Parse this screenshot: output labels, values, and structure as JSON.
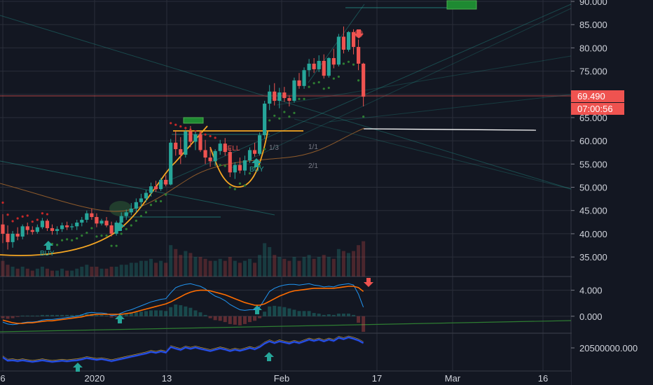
{
  "chart_data": {
    "type": "candlestick",
    "price_ticks": [
      "90.000",
      "85.000",
      "80.000",
      "75.000",
      "70.000",
      "65.000",
      "60.000",
      "55.000",
      "50.000",
      "45.000",
      "40.000",
      "35.000"
    ],
    "price_range": [
      30.8,
      90.3
    ],
    "macd_ticks": [
      "4.000",
      "0.000"
    ],
    "macd_range": [
      -2.5,
      6.0
    ],
    "volume_tick": "20500000.000",
    "x_ticks": [
      "6",
      "2020",
      "13",
      "Feb",
      "17",
      "Mar",
      "16"
    ],
    "last_price": "69.490",
    "countdown": "07:00:56",
    "colors": {
      "up": "#26a69a",
      "down": "#ef5350",
      "orange": "#f5a623",
      "grid": "#2a2e39",
      "bg": "#131722"
    },
    "annotations": [
      {
        "text": "BUY",
        "color": "#26a69a"
      },
      {
        "text": "SELL",
        "color": "#ef5350"
      },
      {
        "text": "BUY",
        "color": "#26a69a"
      },
      {
        "text": "1/1",
        "color": "#787b86"
      },
      {
        "text": "2/1",
        "color": "#787b86"
      },
      {
        "text": "1/3",
        "color": "#787b86"
      }
    ],
    "candles": [
      [
        42.0,
        44.2,
        38.0,
        40.0
      ],
      [
        40.0,
        41.8,
        36.6,
        38.2
      ],
      [
        38.2,
        40.6,
        37.0,
        40.0
      ],
      [
        40.0,
        41.4,
        38.6,
        39.4
      ],
      [
        39.4,
        42.0,
        38.8,
        41.6
      ],
      [
        41.6,
        42.4,
        39.8,
        40.8
      ],
      [
        40.8,
        41.6,
        39.8,
        40.4
      ],
      [
        40.4,
        42.0,
        40.0,
        41.4
      ],
      [
        41.4,
        43.4,
        41.0,
        42.8
      ],
      [
        42.8,
        43.2,
        40.6,
        41.2
      ],
      [
        41.2,
        42.0,
        39.8,
        40.6
      ],
      [
        40.6,
        41.6,
        39.8,
        41.0
      ],
      [
        41.0,
        42.4,
        40.4,
        41.8
      ],
      [
        41.8,
        42.6,
        40.8,
        41.4
      ],
      [
        41.4,
        42.2,
        40.8,
        41.6
      ],
      [
        41.6,
        43.0,
        40.8,
        42.4
      ],
      [
        42.4,
        43.6,
        41.6,
        43.0
      ],
      [
        43.0,
        45.0,
        42.4,
        44.4
      ],
      [
        44.4,
        45.4,
        43.0,
        43.6
      ],
      [
        43.6,
        44.4,
        41.4,
        42.2
      ],
      [
        42.2,
        43.2,
        41.8,
        42.8
      ],
      [
        42.8,
        43.6,
        41.4,
        41.8
      ],
      [
        41.8,
        42.6,
        39.4,
        40.0
      ],
      [
        40.0,
        42.8,
        39.6,
        42.4
      ],
      [
        42.4,
        44.6,
        41.8,
        43.8
      ],
      [
        43.8,
        45.2,
        43.0,
        44.6
      ],
      [
        44.6,
        46.6,
        44.0,
        45.4
      ],
      [
        45.4,
        47.6,
        44.6,
        46.8
      ],
      [
        46.8,
        48.6,
        45.8,
        47.6
      ],
      [
        47.6,
        49.4,
        46.8,
        48.8
      ],
      [
        48.8,
        51.0,
        48.0,
        50.2
      ],
      [
        50.2,
        51.4,
        49.0,
        49.6
      ],
      [
        49.6,
        52.0,
        49.2,
        51.6
      ],
      [
        51.6,
        52.6,
        50.2,
        50.6
      ],
      [
        50.6,
        60.4,
        50.4,
        59.6
      ],
      [
        59.6,
        62.0,
        56.8,
        58.2
      ],
      [
        58.2,
        60.8,
        55.0,
        57.0
      ],
      [
        57.0,
        62.4,
        56.4,
        62.0
      ],
      [
        62.0,
        63.2,
        58.6,
        59.8
      ],
      [
        59.8,
        62.0,
        58.0,
        61.4
      ],
      [
        61.4,
        62.0,
        57.6,
        58.0
      ],
      [
        58.0,
        60.2,
        55.0,
        56.4
      ],
      [
        56.4,
        58.6,
        54.4,
        55.6
      ],
      [
        55.6,
        58.2,
        54.6,
        57.8
      ],
      [
        57.8,
        60.2,
        57.0,
        59.4
      ],
      [
        59.4,
        60.6,
        56.8,
        57.6
      ],
      [
        57.6,
        58.4,
        52.2,
        53.2
      ],
      [
        53.2,
        55.4,
        51.8,
        54.8
      ],
      [
        54.8,
        56.4,
        53.0,
        53.6
      ],
      [
        53.6,
        56.8,
        52.6,
        55.8
      ],
      [
        55.8,
        58.6,
        55.2,
        58.0
      ],
      [
        58.0,
        59.6,
        56.6,
        57.2
      ],
      [
        57.2,
        61.8,
        56.8,
        61.2
      ],
      [
        61.2,
        68.6,
        60.4,
        68.0
      ],
      [
        68.0,
        72.0,
        66.6,
        70.6
      ],
      [
        70.6,
        72.4,
        67.6,
        68.6
      ],
      [
        68.6,
        71.4,
        67.0,
        70.4
      ],
      [
        70.4,
        71.6,
        68.4,
        69.2
      ],
      [
        69.2,
        69.8,
        67.4,
        68.6
      ],
      [
        68.6,
        73.6,
        68.2,
        73.0
      ],
      [
        73.0,
        74.6,
        71.2,
        71.8
      ],
      [
        71.8,
        75.8,
        71.2,
        75.2
      ],
      [
        75.2,
        77.6,
        73.8,
        76.6
      ],
      [
        76.6,
        77.8,
        74.6,
        75.4
      ],
      [
        75.4,
        78.4,
        74.8,
        77.2
      ],
      [
        77.2,
        78.6,
        73.4,
        74.0
      ],
      [
        74.0,
        78.0,
        73.6,
        77.8
      ],
      [
        77.8,
        79.8,
        75.6,
        76.4
      ],
      [
        76.4,
        83.0,
        76.0,
        82.4
      ],
      [
        82.4,
        84.6,
        78.8,
        79.6
      ],
      [
        79.6,
        83.6,
        79.2,
        83.4
      ],
      [
        83.4,
        84.0,
        78.6,
        80.2
      ],
      [
        80.2,
        81.8,
        75.2,
        76.6
      ],
      [
        76.6,
        76.8,
        67.4,
        69.49
      ]
    ],
    "volumes": [
      0.8,
      0.6,
      0.5,
      0.4,
      0.5,
      0.4,
      0.3,
      0.4,
      0.5,
      0.4,
      0.3,
      0.3,
      0.4,
      0.3,
      0.3,
      0.4,
      0.5,
      0.6,
      0.5,
      0.5,
      0.4,
      0.4,
      0.5,
      0.5,
      0.6,
      0.6,
      0.7,
      0.7,
      0.8,
      0.8,
      0.9,
      0.7,
      0.8,
      0.7,
      1.6,
      1.4,
      1.1,
      1.3,
      1.2,
      1.0,
      1.0,
      0.9,
      0.8,
      0.8,
      0.9,
      0.8,
      1.0,
      0.8,
      0.7,
      0.8,
      0.9,
      0.7,
      1.1,
      1.7,
      1.5,
      1.1,
      1.0,
      0.9,
      0.8,
      1.0,
      0.8,
      1.0,
      1.1,
      0.9,
      1.0,
      1.1,
      1.0,
      0.9,
      1.4,
      1.3,
      1.2,
      1.3,
      1.6,
      1.8
    ],
    "macd": [
      -0.9,
      -1.2,
      -1.3,
      -1.2,
      -1.0,
      -0.9,
      -0.9,
      -0.8,
      -0.6,
      -0.5,
      -0.5,
      -0.4,
      -0.3,
      -0.2,
      -0.1,
      0.0,
      0.2,
      0.5,
      0.6,
      0.5,
      0.5,
      0.4,
      0.1,
      0.2,
      0.5,
      0.8,
      1.0,
      1.3,
      1.6,
      1.9,
      2.2,
      2.4,
      2.6,
      2.7,
      3.6,
      4.4,
      4.7,
      4.9,
      5.0,
      4.8,
      4.6,
      4.2,
      3.6,
      3.1,
      2.8,
      2.4,
      1.8,
      1.4,
      1.0,
      0.9,
      1.0,
      1.0,
      1.4,
      2.6,
      3.8,
      4.3,
      4.6,
      4.8,
      4.9,
      4.9,
      4.8,
      4.9,
      5.0,
      4.8,
      4.7,
      4.5,
      4.6,
      4.5,
      4.8,
      4.9,
      5.0,
      4.8,
      3.4,
      1.4
    ],
    "signal": [
      -0.6,
      -0.8,
      -1.0,
      -1.1,
      -1.1,
      -1.0,
      -1.0,
      -0.9,
      -0.8,
      -0.7,
      -0.7,
      -0.6,
      -0.5,
      -0.4,
      -0.3,
      -0.2,
      -0.1,
      0.1,
      0.2,
      0.3,
      0.3,
      0.3,
      0.3,
      0.3,
      0.3,
      0.4,
      0.5,
      0.7,
      0.9,
      1.1,
      1.3,
      1.5,
      1.7,
      1.9,
      2.2,
      2.6,
      3.0,
      3.4,
      3.7,
      3.9,
      4.0,
      4.0,
      3.9,
      3.7,
      3.5,
      3.3,
      3.0,
      2.7,
      2.4,
      2.1,
      1.9,
      1.7,
      1.7,
      1.9,
      2.3,
      2.7,
      3.1,
      3.4,
      3.7,
      3.9,
      4.0,
      4.1,
      4.2,
      4.3,
      4.3,
      4.3,
      4.3,
      4.3,
      4.4,
      4.5,
      4.6,
      4.6,
      4.4,
      3.8
    ],
    "macd_hist": [
      -0.3,
      -0.4,
      -0.3,
      -0.1,
      0.1,
      0.1,
      0.1,
      0.1,
      0.2,
      0.2,
      0.2,
      0.2,
      0.2,
      0.2,
      0.2,
      0.2,
      0.3,
      0.4,
      0.4,
      0.2,
      0.2,
      0.1,
      -0.2,
      -0.1,
      0.2,
      0.4,
      0.5,
      0.6,
      0.7,
      0.8,
      0.9,
      0.9,
      0.9,
      0.8,
      1.4,
      1.8,
      1.7,
      1.5,
      1.3,
      0.9,
      0.6,
      0.2,
      -0.3,
      -0.6,
      -0.7,
      -0.9,
      -1.2,
      -1.3,
      -1.4,
      -1.2,
      -0.9,
      -0.7,
      -0.3,
      0.7,
      1.5,
      1.6,
      1.5,
      1.4,
      1.2,
      1.0,
      0.8,
      0.8,
      0.8,
      0.5,
      0.4,
      0.2,
      0.3,
      0.2,
      0.4,
      0.4,
      0.4,
      0.2,
      -1.0,
      -2.4
    ],
    "obv": [
      -0.15,
      -0.3,
      -0.28,
      -0.32,
      -0.28,
      -0.32,
      -0.35,
      -0.32,
      -0.28,
      -0.32,
      -0.35,
      -0.33,
      -0.3,
      -0.33,
      -0.3,
      -0.28,
      -0.24,
      -0.18,
      -0.22,
      -0.26,
      -0.23,
      -0.27,
      -0.32,
      -0.27,
      -0.22,
      -0.17,
      -0.12,
      -0.07,
      -0.02,
      0.03,
      0.1,
      0.06,
      0.12,
      0.07,
      0.32,
      0.25,
      0.19,
      0.3,
      0.24,
      0.3,
      0.24,
      0.19,
      0.14,
      0.2,
      0.26,
      0.21,
      0.14,
      0.2,
      0.15,
      0.21,
      0.28,
      0.22,
      0.32,
      0.48,
      0.58,
      0.5,
      0.58,
      0.53,
      0.48,
      0.56,
      0.5,
      0.58,
      0.66,
      0.6,
      0.66,
      0.58,
      0.66,
      0.6,
      0.74,
      0.68,
      0.76,
      0.7,
      0.62,
      0.5
    ]
  }
}
